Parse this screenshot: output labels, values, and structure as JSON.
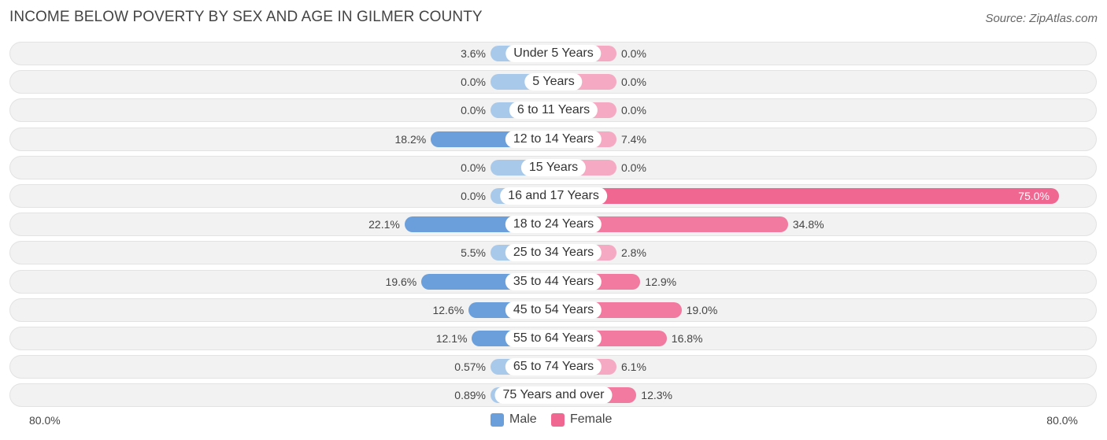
{
  "title": "INCOME BELOW POVERTY BY SEX AND AGE IN GILMER COUNTY",
  "source": "Source: ZipAtlas.com",
  "axis": {
    "left_label": "80.0%",
    "right_label": "80.0%"
  },
  "legend": {
    "male_label": "Male",
    "female_label": "Female"
  },
  "colors": {
    "male_light": "#a9c9ea",
    "male_strong": "#6a9fdc",
    "female_light": "#f5a9c3",
    "female_strong": "#f27aa0",
    "female_max": "#f06892",
    "legend_male": "#6a9fdc",
    "legend_female": "#f06892"
  },
  "chart_data": {
    "type": "bar",
    "orientation": "horizontal-diverging",
    "title": "INCOME BELOW POVERTY BY SEX AND AGE IN GILMER COUNTY",
    "xlim": [
      -80,
      80
    ],
    "categories": [
      "Under 5 Years",
      "5 Years",
      "6 to 11 Years",
      "12 to 14 Years",
      "15 Years",
      "16 and 17 Years",
      "18 to 24 Years",
      "25 to 34 Years",
      "35 to 44 Years",
      "45 to 54 Years",
      "55 to 64 Years",
      "65 to 74 Years",
      "75 Years and over"
    ],
    "series": [
      {
        "name": "Male",
        "values": [
          3.6,
          0.0,
          0.0,
          18.2,
          0.0,
          0.0,
          22.1,
          5.5,
          19.6,
          12.6,
          12.1,
          0.57,
          0.89
        ],
        "labels": [
          "3.6%",
          "0.0%",
          "0.0%",
          "18.2%",
          "0.0%",
          "0.0%",
          "22.1%",
          "5.5%",
          "19.6%",
          "12.6%",
          "12.1%",
          "0.57%",
          "0.89%"
        ]
      },
      {
        "name": "Female",
        "values": [
          0.0,
          0.0,
          0.0,
          7.4,
          0.0,
          75.0,
          34.8,
          2.8,
          12.9,
          19.0,
          16.8,
          6.1,
          12.3
        ],
        "labels": [
          "0.0%",
          "0.0%",
          "0.0%",
          "7.4%",
          "0.0%",
          "75.0%",
          "34.8%",
          "2.8%",
          "12.9%",
          "19.0%",
          "16.8%",
          "6.1%",
          "12.3%"
        ]
      }
    ],
    "legend_position": "bottom-center"
  }
}
